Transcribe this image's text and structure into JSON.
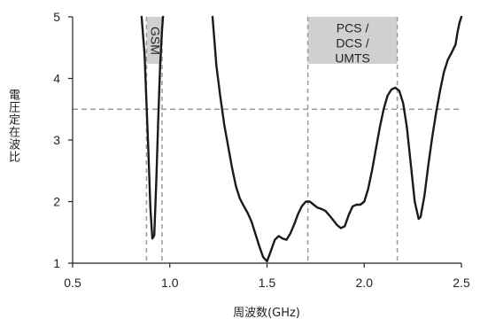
{
  "chart_data": {
    "type": "line",
    "xlabel": "周波数(GHz)",
    "ylabel": "電圧定在波比",
    "xlim": [
      0.5,
      2.5
    ],
    "ylim": [
      1,
      5
    ],
    "x_ticks": [
      "0.5",
      "1.0",
      "1.5",
      "2.0",
      "2.5"
    ],
    "y_ticks": [
      "1",
      "2",
      "3",
      "4",
      "5"
    ],
    "threshold": 3.5,
    "bands": [
      {
        "label": "GSM",
        "x_start": 0.88,
        "x_end": 0.96,
        "color": "#d0d0d0"
      },
      {
        "label_lines": [
          "PCS /",
          "DCS /",
          "UMTS"
        ],
        "x_start": 1.71,
        "x_end": 2.17,
        "color": "#d0d0d0"
      }
    ],
    "series": [
      {
        "line_color": "#1a1a1a",
        "segments": [
          [
            [
              0.855,
              5.0
            ],
            [
              0.87,
              4.4
            ],
            [
              0.88,
              3.6
            ],
            [
              0.89,
              2.8
            ],
            [
              0.9,
              1.9
            ],
            [
              0.91,
              1.4
            ],
            [
              0.92,
              1.45
            ],
            [
              0.93,
              2.3
            ],
            [
              0.94,
              3.3
            ],
            [
              0.95,
              4.2
            ],
            [
              0.96,
              4.8
            ],
            [
              0.965,
              5.0
            ]
          ],
          [
            [
              1.22,
              5.0
            ],
            [
              1.23,
              4.6
            ],
            [
              1.24,
              4.2
            ],
            [
              1.26,
              3.7
            ],
            [
              1.28,
              3.25
            ],
            [
              1.3,
              2.9
            ],
            [
              1.32,
              2.55
            ],
            [
              1.34,
              2.25
            ],
            [
              1.36,
              2.05
            ],
            [
              1.38,
              1.93
            ],
            [
              1.4,
              1.82
            ],
            [
              1.42,
              1.68
            ],
            [
              1.44,
              1.48
            ],
            [
              1.46,
              1.28
            ],
            [
              1.48,
              1.1
            ],
            [
              1.5,
              1.03
            ],
            [
              1.52,
              1.2
            ],
            [
              1.54,
              1.38
            ],
            [
              1.56,
              1.44
            ],
            [
              1.58,
              1.4
            ],
            [
              1.6,
              1.38
            ],
            [
              1.62,
              1.48
            ],
            [
              1.64,
              1.63
            ],
            [
              1.66,
              1.8
            ],
            [
              1.68,
              1.93
            ],
            [
              1.7,
              2.0
            ],
            [
              1.72,
              2.0
            ],
            [
              1.74,
              1.95
            ],
            [
              1.76,
              1.9
            ],
            [
              1.78,
              1.88
            ],
            [
              1.8,
              1.85
            ],
            [
              1.82,
              1.78
            ],
            [
              1.84,
              1.7
            ],
            [
              1.86,
              1.62
            ],
            [
              1.88,
              1.57
            ],
            [
              1.9,
              1.6
            ],
            [
              1.92,
              1.78
            ],
            [
              1.94,
              1.92
            ],
            [
              1.96,
              1.95
            ],
            [
              1.98,
              1.95
            ],
            [
              2.0,
              2.0
            ],
            [
              2.02,
              2.2
            ],
            [
              2.04,
              2.5
            ],
            [
              2.06,
              2.85
            ],
            [
              2.08,
              3.2
            ],
            [
              2.1,
              3.5
            ],
            [
              2.12,
              3.72
            ],
            [
              2.14,
              3.82
            ],
            [
              2.16,
              3.85
            ],
            [
              2.18,
              3.8
            ],
            [
              2.2,
              3.6
            ],
            [
              2.22,
              3.2
            ],
            [
              2.24,
              2.6
            ],
            [
              2.26,
              2.0
            ],
            [
              2.28,
              1.72
            ],
            [
              2.29,
              1.75
            ],
            [
              2.31,
              2.1
            ],
            [
              2.33,
              2.6
            ],
            [
              2.35,
              3.05
            ],
            [
              2.37,
              3.45
            ],
            [
              2.39,
              3.8
            ],
            [
              2.41,
              4.1
            ],
            [
              2.43,
              4.3
            ],
            [
              2.45,
              4.42
            ],
            [
              2.47,
              4.55
            ],
            [
              2.48,
              4.75
            ],
            [
              2.49,
              4.9
            ],
            [
              2.5,
              5.0
            ]
          ]
        ]
      }
    ]
  }
}
